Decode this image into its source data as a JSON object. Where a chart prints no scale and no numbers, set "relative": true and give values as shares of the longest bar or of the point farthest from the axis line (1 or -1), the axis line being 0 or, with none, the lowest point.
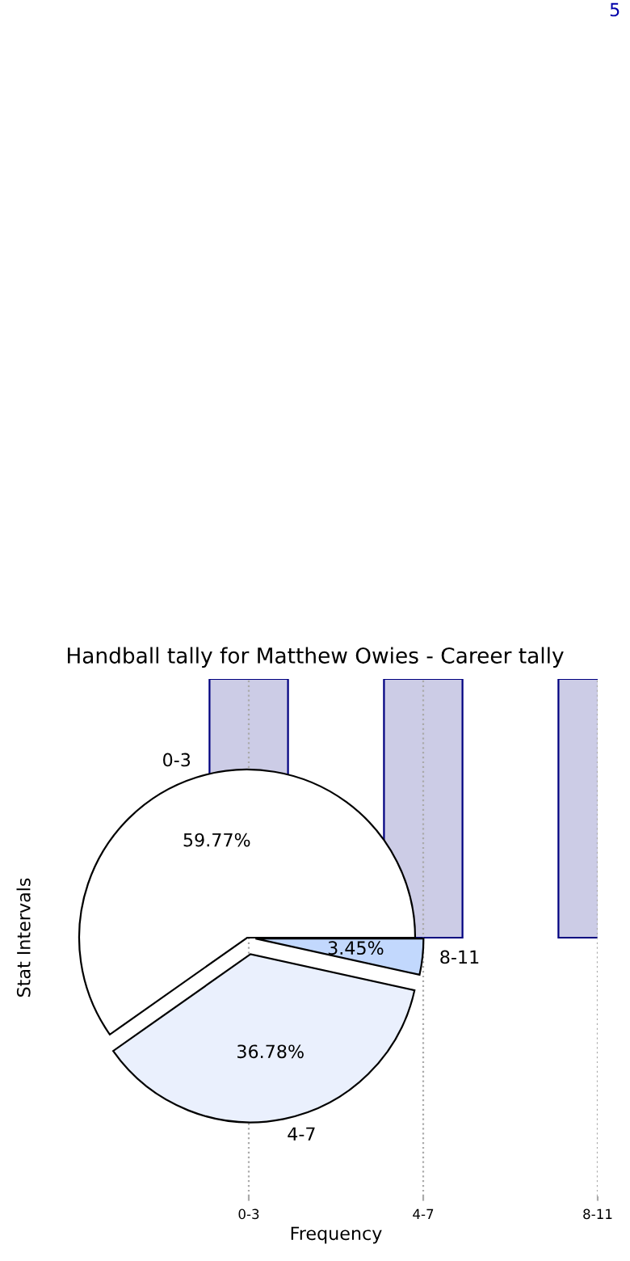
{
  "chart_data": [
    {
      "type": "bar",
      "title": "Handball tally for Matthew Owies - Career tally",
      "xlabel": "Frequency",
      "ylabel": "Stat Intervals",
      "categories": [
        "0-3",
        "4-7",
        "8-11"
      ],
      "values": [
        1,
        1,
        1
      ],
      "relative": true,
      "color": "#cccce6",
      "grid": "x",
      "annotations": [
        "5"
      ]
    },
    {
      "type": "pie",
      "categories": [
        "0-3",
        "4-7",
        "8-11"
      ],
      "values": [
        59.77,
        36.78,
        3.45
      ],
      "colors": [
        "#ffffff",
        "#eaf0fd",
        "#c2d8fd"
      ],
      "value_labels": [
        "59.77%",
        "36.78%",
        "3.45%"
      ]
    }
  ]
}
